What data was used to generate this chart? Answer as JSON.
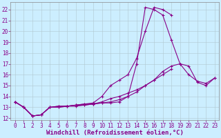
{
  "xlabel": "Windchill (Refroidissement éolien,°C)",
  "background_color": "#cceeff",
  "line_color": "#880088",
  "xlim": [
    -0.5,
    23.5
  ],
  "ylim": [
    11.8,
    22.7
  ],
  "yticks": [
    12,
    13,
    14,
    15,
    16,
    17,
    18,
    19,
    20,
    21,
    22
  ],
  "xticks": [
    0,
    1,
    2,
    3,
    4,
    5,
    6,
    7,
    8,
    9,
    10,
    11,
    12,
    13,
    14,
    15,
    16,
    17,
    18,
    19,
    20,
    21,
    22,
    23
  ],
  "series": [
    [
      13.5,
      13.0,
      12.2,
      12.3,
      13.0,
      13.1,
      13.1,
      13.2,
      13.3,
      13.3,
      13.4,
      13.4,
      13.5,
      14.0,
      17.0,
      22.2,
      22.0,
      21.5,
      19.2,
      17.0,
      16.0,
      15.4,
      15.2,
      15.7
    ],
    [
      13.5,
      13.0,
      12.2,
      12.3,
      13.0,
      13.1,
      13.1,
      13.2,
      13.3,
      13.4,
      14.0,
      15.0,
      15.5,
      16.0,
      17.5,
      20.0,
      22.2,
      22.0,
      21.5,
      null,
      null,
      null,
      null,
      null
    ],
    [
      13.5,
      13.0,
      12.2,
      12.3,
      13.0,
      13.0,
      13.1,
      13.2,
      13.2,
      13.3,
      13.4,
      13.5,
      13.7,
      14.0,
      14.4,
      15.0,
      15.5,
      16.0,
      16.5,
      null,
      null,
      null,
      null,
      null
    ],
    [
      13.5,
      13.0,
      12.2,
      12.3,
      13.0,
      13.0,
      13.1,
      13.1,
      13.2,
      13.3,
      13.5,
      13.8,
      14.0,
      14.3,
      14.6,
      15.0,
      15.5,
      16.3,
      16.8,
      17.0,
      16.8,
      15.3,
      15.0,
      15.7
    ]
  ],
  "font_color": "#880088",
  "grid_color": "#b0c8d0",
  "tick_fontsize": 5.5,
  "label_fontsize": 6.5
}
